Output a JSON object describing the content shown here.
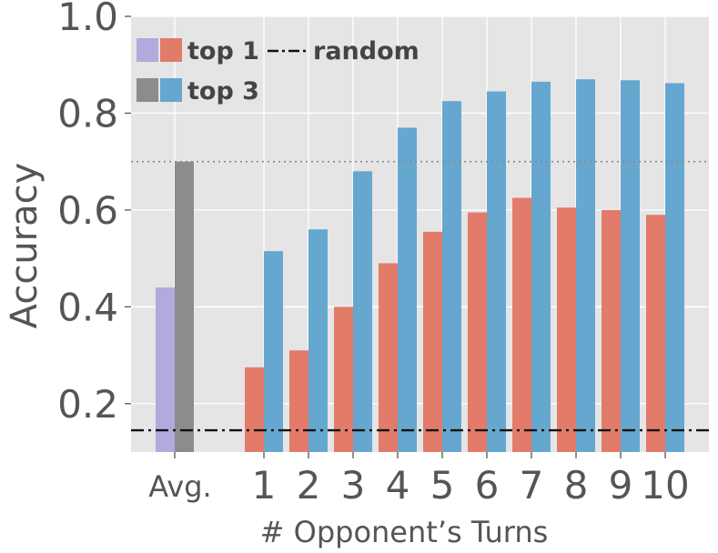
{
  "chart_data": {
    "type": "bar",
    "xlabel": "# Opponent’s Turns",
    "ylabel": "Accuracy",
    "ylim": [
      0.1,
      1.0
    ],
    "yticks": [
      "0.2",
      "0.4",
      "0.6",
      "0.8",
      "1.0"
    ],
    "grid": true,
    "legend_placement": "top-left",
    "legend": {
      "top1_label": "top 1",
      "top3_label": "top 3",
      "random_label": "random"
    },
    "avg": {
      "label": "Avg.",
      "top1": 0.44,
      "top3": 0.7,
      "top1_color": "#b3a9dc",
      "top3_color": "#8c8c8c"
    },
    "categories": [
      "1",
      "2",
      "3",
      "4",
      "5",
      "6",
      "7",
      "8",
      "9",
      "10"
    ],
    "series": [
      {
        "name": "top 1",
        "color": "#e27b69",
        "values": [
          0.275,
          0.31,
          0.4,
          0.49,
          0.555,
          0.595,
          0.625,
          0.605,
          0.6,
          0.59
        ]
      },
      {
        "name": "top 3",
        "color": "#66a7d0",
        "values": [
          0.515,
          0.56,
          0.68,
          0.77,
          0.825,
          0.845,
          0.865,
          0.87,
          0.868,
          0.862
        ]
      }
    ],
    "reference_lines": [
      {
        "kind": "random",
        "value": 0.145,
        "style": "dash-dot",
        "color": "#111111"
      },
      {
        "kind": "avg-top3",
        "value": 0.7,
        "style": "dotted",
        "color": "#888888"
      }
    ],
    "colors": {
      "plot_background": "#e5e5e5",
      "grid": "#ffffff",
      "tick_text": "#555555"
    }
  }
}
